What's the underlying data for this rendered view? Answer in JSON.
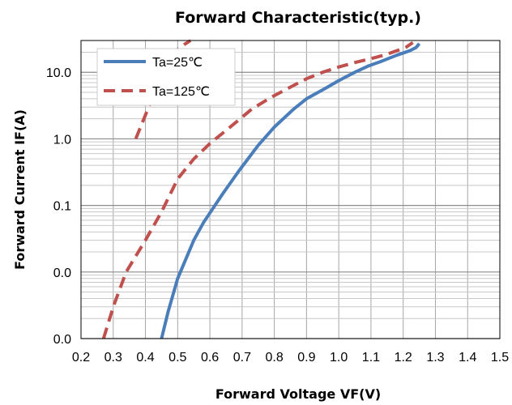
{
  "chart_data": {
    "type": "line",
    "title": "Forward Characteristic(typ.)",
    "xlabel": "Forward Voltage VF(V)",
    "ylabel": "Forward Current IF(A)",
    "xlim": [
      0.2,
      1.5
    ],
    "ylim": [
      0.001,
      30
    ],
    "y_scale": "log",
    "grid": true,
    "legend_placement": "top-left",
    "x_ticks": [
      0.2,
      0.3,
      0.4,
      0.5,
      0.6,
      0.7,
      0.8,
      0.9,
      1.0,
      1.1,
      1.2,
      1.3,
      1.4,
      1.5
    ],
    "x_tick_labels": [
      "0.2",
      "0.3",
      "0.4",
      "0.5",
      "0.6",
      "0.7",
      "0.8",
      "0.9",
      "1.0",
      "1.1",
      "1.2",
      "1.3",
      "1.4",
      "1.5"
    ],
    "y_ticks": [
      0.001,
      0.01,
      0.1,
      1,
      10
    ],
    "y_tick_labels": [
      "0.0",
      "0.0",
      "0.1",
      "1.0",
      "10.0"
    ],
    "series": [
      {
        "name": "Ta=25℃",
        "color": "#4a7ebb",
        "dash": "solid",
        "x": [
          0.45,
          0.47,
          0.5,
          0.55,
          0.58,
          0.64,
          0.69,
          0.75,
          0.8,
          0.86,
          0.9,
          0.96,
          1.0,
          1.05,
          1.09,
          1.13,
          1.18,
          1.22,
          1.24,
          1.25
        ],
        "y": [
          0.001,
          0.0025,
          0.008,
          0.03,
          0.055,
          0.15,
          0.33,
          0.8,
          1.5,
          2.8,
          4.0,
          5.8,
          7.5,
          10,
          12.3,
          14.5,
          18,
          21,
          23.5,
          27
        ]
      },
      {
        "name": "Ta=125℃",
        "color": "#c0504d",
        "dash": "dashed",
        "x": [
          0.27,
          0.3,
          0.34,
          0.4,
          0.45,
          0.5,
          0.55,
          0.6,
          0.67,
          0.73,
          0.79,
          0.85,
          0.9,
          0.95,
          1.0,
          1.05,
          1.1,
          1.14,
          1.18,
          1.21,
          1.23
        ],
        "y": [
          0.001,
          0.003,
          0.01,
          0.03,
          0.08,
          0.25,
          0.5,
          0.85,
          1.6,
          2.8,
          4.2,
          6.0,
          8.0,
          10,
          12,
          14,
          16,
          18,
          21,
          24,
          28
        ]
      },
      {
        "name": "",
        "color": "#c0504d",
        "dash": "dashed",
        "x": [
          0.37,
          0.41,
          0.45,
          0.5,
          0.52,
          0.54
        ],
        "y": [
          1.0,
          3.0,
          9.0,
          22,
          26,
          30
        ]
      }
    ]
  }
}
